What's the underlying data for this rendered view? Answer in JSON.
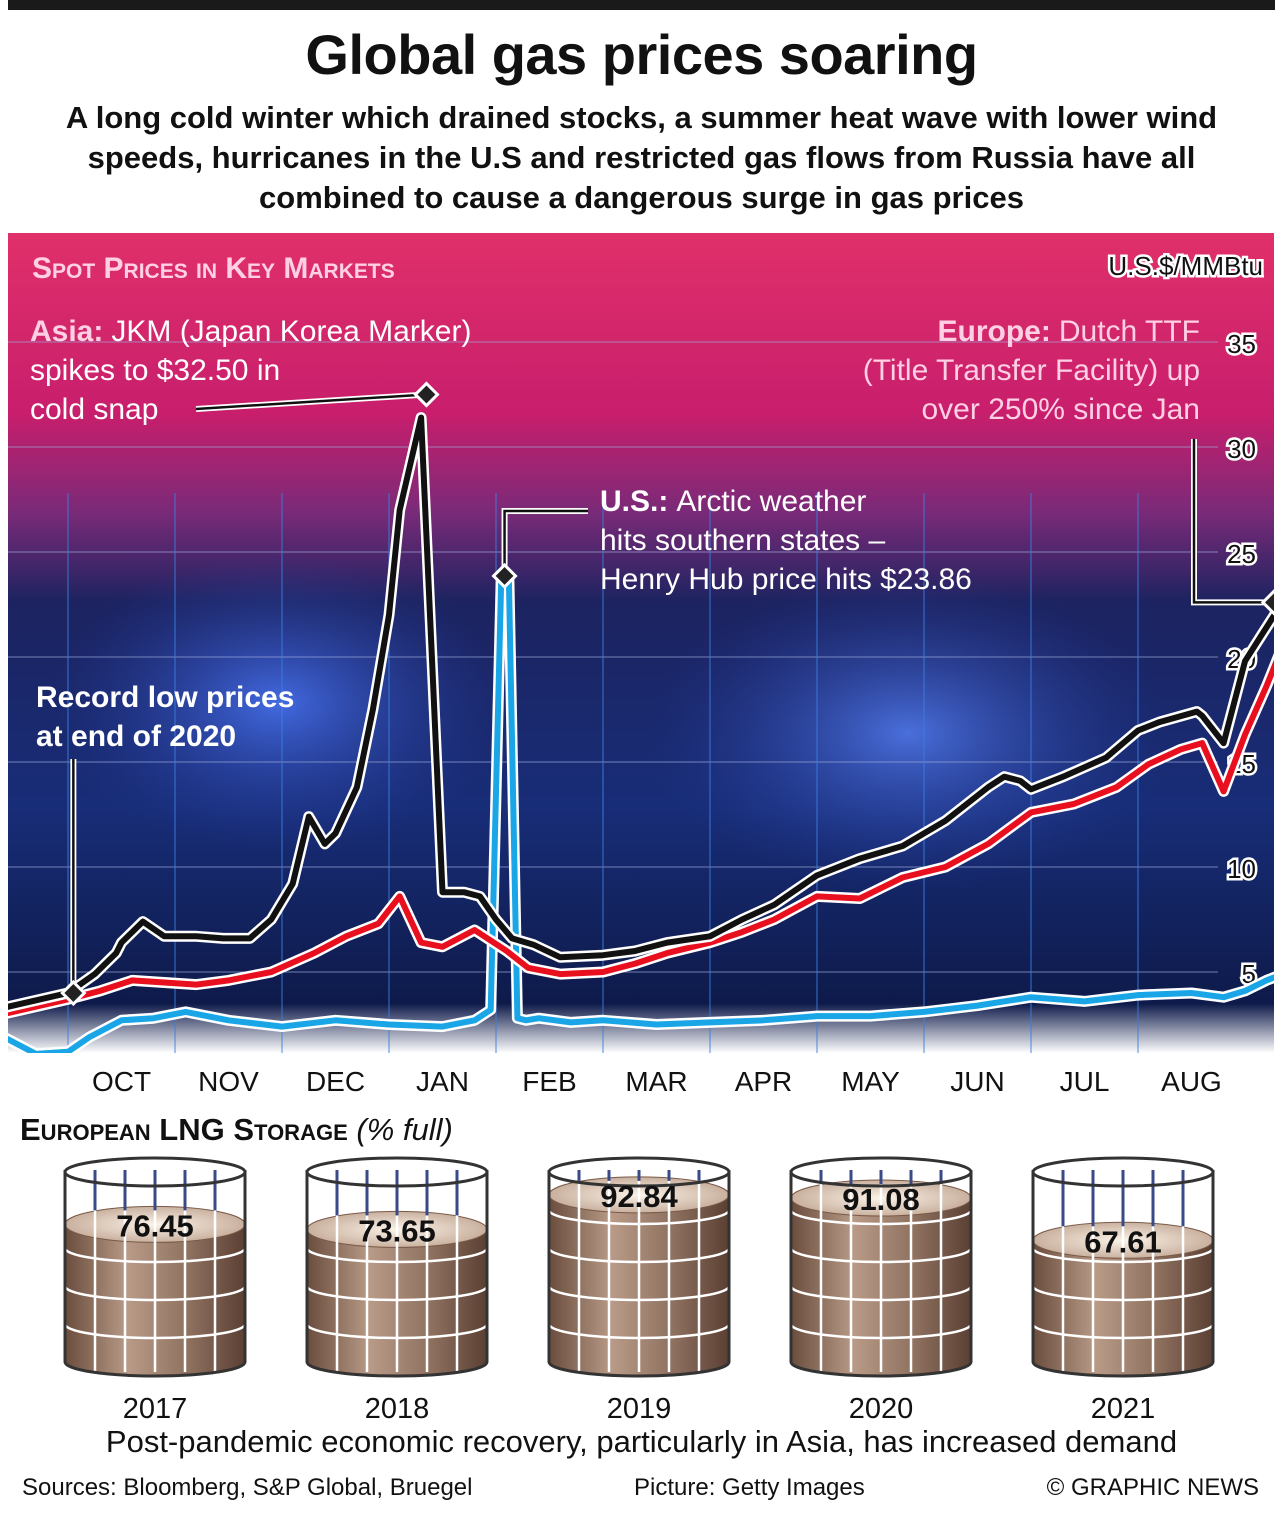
{
  "header": {
    "title": "Global gas prices soaring",
    "subtitle": "A long cold winter which drained stocks, a summer heat wave with lower wind speeds, hurricanes in the U.S and restricted gas flows from Russia have all combined to cause a dangerous surge in gas prices"
  },
  "chart_data": [
    {
      "type": "line",
      "title": "Spot Prices in Key Markets",
      "unit": "U.S.$/MMBtu",
      "ylim": [
        0,
        38
      ],
      "yticks": [
        5,
        10,
        15,
        20,
        25,
        30,
        35
      ],
      "x_tick_labels": [
        "OCT",
        "NOV",
        "DEC",
        "JAN",
        "FEB",
        "MAR",
        "APR",
        "MAY",
        "JUN",
        "JUL",
        "AUG"
      ],
      "x_unit": "month index (0 = start of OCT 2020)",
      "grid": true,
      "series": [
        {
          "name": "Asia: JKM (Japan Korea Marker)",
          "color": "#111111",
          "x": [
            -0.6,
            0,
            0.25,
            0.45,
            0.5,
            0.7,
            0.9,
            1.2,
            1.45,
            1.7,
            1.9,
            2.1,
            2.25,
            2.4,
            2.5,
            2.7,
            2.85,
            3.0,
            3.1,
            3.3,
            3.5,
            3.7,
            3.85,
            4.0,
            4.15,
            4.35,
            4.6,
            5.0,
            5.3,
            5.6,
            6.0,
            6.3,
            6.6,
            7.0,
            7.4,
            7.8,
            8.2,
            8.6,
            8.75,
            8.9,
            9.0,
            9.3,
            9.7,
            10.0,
            10.2,
            10.55,
            10.6,
            10.8,
            11.0,
            11.15,
            11.35
          ],
          "y": [
            3.3,
            4.0,
            4.9,
            5.9,
            6.4,
            7.4,
            6.7,
            6.7,
            6.6,
            6.6,
            7.5,
            9.2,
            12.4,
            11.1,
            11.6,
            13.8,
            17.5,
            22.0,
            27.0,
            31.4,
            8.8,
            8.8,
            8.6,
            7.5,
            6.6,
            6.3,
            5.7,
            5.8,
            6.0,
            6.4,
            6.7,
            7.5,
            8.2,
            9.6,
            10.4,
            11.0,
            12.2,
            13.8,
            14.3,
            14.1,
            13.7,
            14.3,
            15.2,
            16.5,
            16.9,
            17.4,
            17.2,
            15.9,
            19.8,
            21.0,
            22.6
          ]
        },
        {
          "name": "Europe: Dutch TTF (Title Transfer Facility)",
          "color": "#e8101e",
          "x": [
            -0.6,
            0,
            0.3,
            0.6,
            0.9,
            1.2,
            1.5,
            1.9,
            2.3,
            2.6,
            2.9,
            3.1,
            3.3,
            3.5,
            3.8,
            4.1,
            4.3,
            4.6,
            5.0,
            5.3,
            5.6,
            6.0,
            6.3,
            6.6,
            7.0,
            7.4,
            7.8,
            8.2,
            8.6,
            9.0,
            9.4,
            9.8,
            10.1,
            10.4,
            10.6,
            10.8,
            11.0,
            11.2,
            11.35
          ],
          "y": [
            3.0,
            3.7,
            4.1,
            4.6,
            4.5,
            4.4,
            4.6,
            5.0,
            5.9,
            6.7,
            7.3,
            8.6,
            6.4,
            6.2,
            7.0,
            6.0,
            5.2,
            4.9,
            5.0,
            5.4,
            5.9,
            6.4,
            6.9,
            7.5,
            8.6,
            8.5,
            9.5,
            10.0,
            11.1,
            12.6,
            13.0,
            13.8,
            14.9,
            15.6,
            15.9,
            13.6,
            16.3,
            18.6,
            20.5
          ]
        },
        {
          "name": "U.S.: Henry Hub",
          "color": "#1aa6e6",
          "x": [
            -0.6,
            -0.3,
            0,
            0.2,
            0.5,
            0.8,
            1.1,
            1.5,
            2.0,
            2.5,
            3.0,
            3.5,
            3.8,
            3.95,
            4.05,
            4.12,
            4.2,
            4.28,
            4.4,
            4.7,
            5.0,
            5.5,
            6.0,
            6.5,
            7.0,
            7.5,
            8.0,
            8.5,
            9.0,
            9.5,
            10.0,
            10.5,
            10.8,
            11.0,
            11.2,
            11.35
          ],
          "y": [
            1.9,
            1.1,
            1.2,
            1.9,
            2.7,
            2.8,
            3.1,
            2.7,
            2.4,
            2.7,
            2.5,
            2.4,
            2.7,
            3.2,
            23.86,
            23.9,
            2.8,
            2.7,
            2.8,
            2.6,
            2.7,
            2.5,
            2.6,
            2.7,
            2.9,
            2.9,
            3.1,
            3.4,
            3.8,
            3.6,
            3.9,
            4.0,
            3.8,
            4.1,
            4.6,
            4.9
          ]
        }
      ],
      "annotations": {
        "asia": {
          "bold": "Asia:",
          "text": "JKM (Japan Korea Marker) spikes to $32.50 in cold snap",
          "line1": "JKM (Japan Korea Marker)",
          "line2": "spikes to $32.50 in",
          "line3": "cold snap"
        },
        "europe": {
          "bold": "Europe:",
          "text": "Dutch TTF (Title Transfer Facility) up over 250% since Jan",
          "line1": "Dutch TTF",
          "line2": "(Title Transfer Facility) up",
          "line3": "over 250% since Jan"
        },
        "us": {
          "bold": "U.S.:",
          "text": "Arctic weather hits southern states – Henry Hub price hits $23.86",
          "line1": "Arctic weather",
          "line2": "hits southern states –",
          "line3": "Henry Hub price hits $23.86"
        },
        "record_low": {
          "line1": "Record low prices",
          "line2": "at end of 2020"
        }
      },
      "markers": [
        {
          "series": "Asia",
          "x": 3.35,
          "y": 32.5
        },
        {
          "series": "U.S.",
          "x": 4.08,
          "y": 23.86
        },
        {
          "series": "Europe",
          "x": 11.27,
          "y": 22.6
        },
        {
          "series": "Record low",
          "x": 0.05,
          "y": 4.0
        }
      ]
    },
    {
      "type": "bar",
      "title": "European LNG Storage",
      "unit": "(% full)",
      "categories": [
        "2017",
        "2018",
        "2019",
        "2020",
        "2021"
      ],
      "values": [
        76.45,
        73.65,
        92.84,
        91.08,
        67.61
      ],
      "ylim": [
        0,
        100
      ]
    }
  ],
  "storage": {
    "title": "European LNG Storage",
    "unit": "(% full)"
  },
  "footer": {
    "note": "Post-pandemic economic recovery, particularly in Asia, has increased demand",
    "sources": "Sources: Bloomberg, S&P Global, Bruegel",
    "picture": "Picture: Getty Images",
    "copyright": "© GRAPHIC NEWS"
  },
  "colors": {
    "asia": "#111111",
    "europe": "#e8101e",
    "us": "#1aa6e6",
    "title_pink": "#ffd0e4",
    "tank_fill": "#8a6c5a"
  }
}
